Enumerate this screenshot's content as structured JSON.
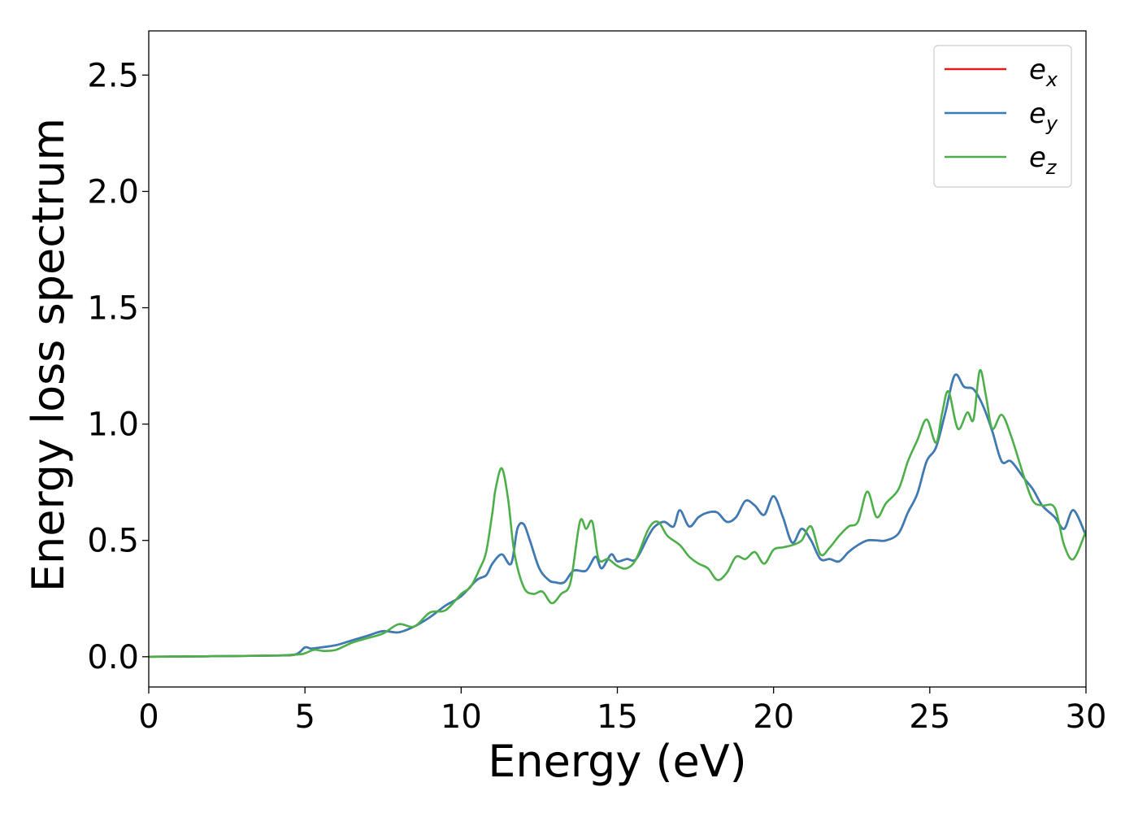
{
  "chart_data": {
    "type": "line",
    "xlabel": "Energy (eV)",
    "ylabel": "Energy loss spectrum",
    "xlim": [
      0,
      30
    ],
    "ylim": [
      -0.13,
      2.69
    ],
    "xticks": [
      0,
      5,
      10,
      15,
      20,
      25,
      30
    ],
    "xtick_labels": [
      "0",
      "5",
      "10",
      "15",
      "20",
      "25",
      "30"
    ],
    "yticks": [
      0.0,
      0.5,
      1.0,
      1.5,
      2.0,
      2.5
    ],
    "ytick_labels": [
      "0.0",
      "0.5",
      "1.0",
      "1.5",
      "2.0",
      "2.5"
    ],
    "grid": false,
    "legend_position": "top-right",
    "series": [
      {
        "name": "e",
        "subscript": "x",
        "color": "#e41a1c",
        "x": [
          0,
          2,
          4,
          4.7,
          5,
          5.2,
          5.5,
          6,
          6.5,
          7,
          7.5,
          8,
          8.5,
          9,
          9.5,
          10,
          10.5,
          10.8,
          11.0,
          11.3,
          11.6,
          11.8,
          12.0,
          12.2,
          12.5,
          12.8,
          13.0,
          13.3,
          13.6,
          14.0,
          14.3,
          14.5,
          14.8,
          15.0,
          15.3,
          15.6,
          16.0,
          16.2,
          16.5,
          16.8,
          17.0,
          17.3,
          17.6,
          17.9,
          18.2,
          18.5,
          18.8,
          19.1,
          19.4,
          19.7,
          20.0,
          20.3,
          20.6,
          20.9,
          21.2,
          21.5,
          21.8,
          22.1,
          22.4,
          22.7,
          23.0,
          23.3,
          23.6,
          24.0,
          24.3,
          24.6,
          24.9,
          25.2,
          25.5,
          25.8,
          26.1,
          26.4,
          26.7,
          27.0,
          27.3,
          27.6,
          28.0,
          28.3,
          28.6,
          29.0,
          29.3,
          29.6,
          30.0
        ],
        "y": [
          0,
          0.002,
          0.005,
          0.01,
          0.04,
          0.035,
          0.04,
          0.05,
          0.07,
          0.09,
          0.11,
          0.105,
          0.13,
          0.17,
          0.22,
          0.26,
          0.33,
          0.35,
          0.4,
          0.44,
          0.4,
          0.55,
          0.57,
          0.5,
          0.38,
          0.33,
          0.32,
          0.32,
          0.37,
          0.37,
          0.43,
          0.38,
          0.44,
          0.41,
          0.42,
          0.42,
          0.52,
          0.56,
          0.58,
          0.56,
          0.63,
          0.56,
          0.6,
          0.62,
          0.62,
          0.58,
          0.6,
          0.67,
          0.65,
          0.61,
          0.69,
          0.6,
          0.49,
          0.55,
          0.5,
          0.42,
          0.42,
          0.41,
          0.45,
          0.48,
          0.5,
          0.5,
          0.5,
          0.53,
          0.62,
          0.7,
          0.84,
          0.9,
          1.05,
          1.21,
          1.16,
          1.15,
          1.08,
          0.97,
          0.84,
          0.84,
          0.77,
          0.72,
          0.65,
          0.6,
          0.55,
          0.63,
          0.52
        ]
      },
      {
        "name": "e",
        "subscript": "y",
        "color": "#377eb8",
        "x": [
          0,
          2,
          4,
          4.7,
          5,
          5.2,
          5.5,
          6,
          6.5,
          7,
          7.5,
          8,
          8.5,
          9,
          9.5,
          10,
          10.5,
          10.8,
          11.0,
          11.3,
          11.6,
          11.8,
          12.0,
          12.2,
          12.5,
          12.8,
          13.0,
          13.3,
          13.6,
          14.0,
          14.3,
          14.5,
          14.8,
          15.0,
          15.3,
          15.6,
          16.0,
          16.2,
          16.5,
          16.8,
          17.0,
          17.3,
          17.6,
          17.9,
          18.2,
          18.5,
          18.8,
          19.1,
          19.4,
          19.7,
          20.0,
          20.3,
          20.6,
          20.9,
          21.2,
          21.5,
          21.8,
          22.1,
          22.4,
          22.7,
          23.0,
          23.3,
          23.6,
          24.0,
          24.3,
          24.6,
          24.9,
          25.2,
          25.5,
          25.8,
          26.1,
          26.4,
          26.7,
          27.0,
          27.3,
          27.6,
          28.0,
          28.3,
          28.6,
          29.0,
          29.3,
          29.6,
          30.0
        ],
        "y": [
          0,
          0.002,
          0.005,
          0.01,
          0.04,
          0.035,
          0.04,
          0.05,
          0.07,
          0.09,
          0.11,
          0.105,
          0.13,
          0.17,
          0.22,
          0.26,
          0.33,
          0.35,
          0.4,
          0.44,
          0.4,
          0.55,
          0.57,
          0.5,
          0.38,
          0.33,
          0.32,
          0.32,
          0.37,
          0.37,
          0.43,
          0.38,
          0.44,
          0.41,
          0.42,
          0.42,
          0.52,
          0.56,
          0.58,
          0.56,
          0.63,
          0.56,
          0.6,
          0.62,
          0.62,
          0.58,
          0.6,
          0.67,
          0.65,
          0.61,
          0.69,
          0.6,
          0.49,
          0.55,
          0.5,
          0.42,
          0.42,
          0.41,
          0.45,
          0.48,
          0.5,
          0.5,
          0.5,
          0.53,
          0.62,
          0.7,
          0.84,
          0.9,
          1.05,
          1.21,
          1.16,
          1.15,
          1.08,
          0.97,
          0.84,
          0.84,
          0.77,
          0.72,
          0.65,
          0.6,
          0.55,
          0.63,
          0.52
        ]
      },
      {
        "name": "e",
        "subscript": "z",
        "color": "#4daf4a",
        "x": [
          0,
          2,
          4,
          4.8,
          5.0,
          5.3,
          5.6,
          6.0,
          6.5,
          7.0,
          7.5,
          8.0,
          8.5,
          9.0,
          9.5,
          10.0,
          10.3,
          10.6,
          10.8,
          11.0,
          11.1,
          11.3,
          11.5,
          11.7,
          12.0,
          12.3,
          12.6,
          12.9,
          13.2,
          13.5,
          13.8,
          14.0,
          14.2,
          14.4,
          14.7,
          15.0,
          15.3,
          15.6,
          16.0,
          16.3,
          16.6,
          17.0,
          17.3,
          17.6,
          17.9,
          18.2,
          18.5,
          18.8,
          19.1,
          19.4,
          19.7,
          20.0,
          20.3,
          20.6,
          20.9,
          21.2,
          21.5,
          21.8,
          22.1,
          22.4,
          22.7,
          23.0,
          23.3,
          23.6,
          24.0,
          24.3,
          24.6,
          24.9,
          25.2,
          25.4,
          25.6,
          25.9,
          26.2,
          26.4,
          26.6,
          26.8,
          27.0,
          27.3,
          27.6,
          28.0,
          28.3,
          28.6,
          29.0,
          29.3,
          29.6,
          30.0
        ],
        "y": [
          0,
          0.002,
          0.005,
          0.01,
          0.015,
          0.03,
          0.025,
          0.03,
          0.06,
          0.08,
          0.1,
          0.14,
          0.13,
          0.19,
          0.2,
          0.27,
          0.3,
          0.38,
          0.45,
          0.62,
          0.72,
          0.81,
          0.68,
          0.45,
          0.3,
          0.27,
          0.28,
          0.23,
          0.27,
          0.32,
          0.58,
          0.55,
          0.58,
          0.42,
          0.42,
          0.39,
          0.38,
          0.42,
          0.55,
          0.58,
          0.52,
          0.48,
          0.43,
          0.4,
          0.38,
          0.33,
          0.36,
          0.43,
          0.42,
          0.45,
          0.4,
          0.46,
          0.47,
          0.48,
          0.5,
          0.56,
          0.44,
          0.47,
          0.52,
          0.56,
          0.58,
          0.71,
          0.6,
          0.66,
          0.72,
          0.84,
          0.93,
          1.02,
          0.92,
          1.05,
          1.14,
          0.98,
          1.05,
          1.02,
          1.23,
          1.12,
          0.98,
          1.04,
          0.95,
          0.78,
          0.67,
          0.65,
          0.64,
          0.48,
          0.42,
          0.54
        ]
      }
    ]
  }
}
